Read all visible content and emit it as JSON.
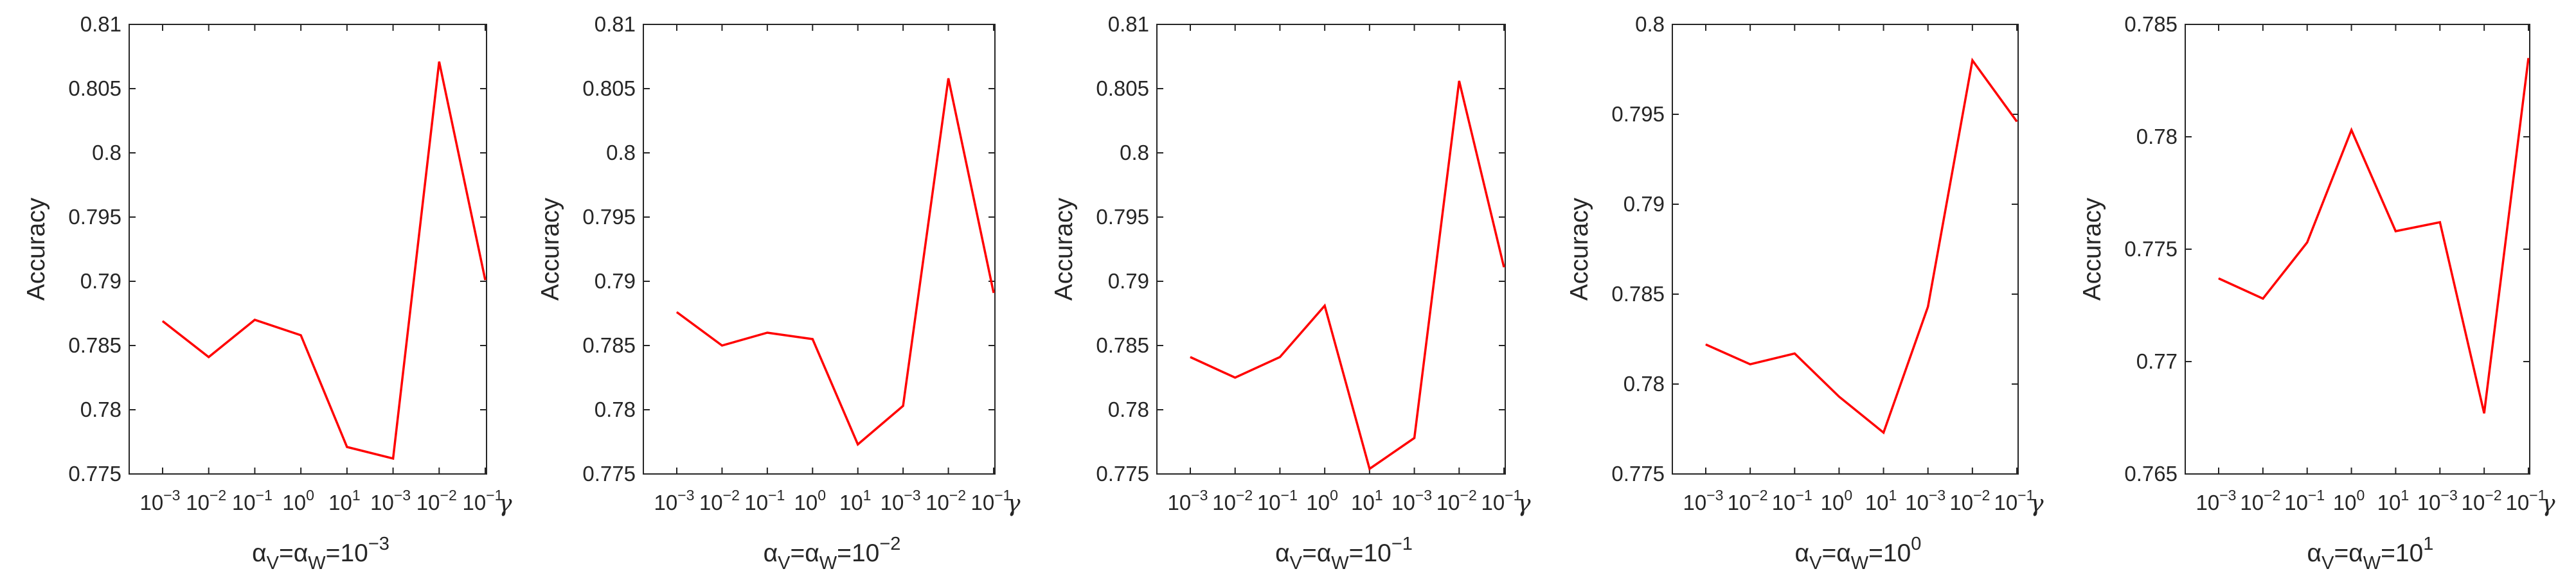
{
  "colors": {
    "series": "#ff0000",
    "axes": "#262626"
  },
  "chart_data": [
    {
      "type": "line",
      "ylabel": "Accuracy",
      "xlabel": {
        "base": "α",
        "sub1": "V",
        "sub2": "W",
        "text": "=",
        "pow_base": "10",
        "exp": "-3"
      },
      "gamma_label": "γ",
      "categories": [
        {
          "base": "10",
          "exp": "-3"
        },
        {
          "base": "10",
          "exp": "-2"
        },
        {
          "base": "10",
          "exp": "-1"
        },
        {
          "base": "10",
          "exp": "0"
        },
        {
          "base": "10",
          "exp": "1"
        },
        {
          "base": "10",
          "exp": "-3"
        },
        {
          "base": "10",
          "exp": "-2"
        },
        {
          "base": "10",
          "exp": "-1"
        }
      ],
      "values": [
        0.7869,
        0.7841,
        0.787,
        0.7858,
        0.7771,
        0.7762,
        0.8071,
        0.7901
      ],
      "ylim": [
        0.775,
        0.81
      ],
      "yticks": [
        "0.775",
        "0.78",
        "0.785",
        "0.79",
        "0.795",
        "0.8",
        "0.805",
        "0.81"
      ],
      "ytick_values": [
        0.775,
        0.78,
        0.785,
        0.79,
        0.795,
        0.8,
        0.805,
        0.81
      ],
      "grid": false
    },
    {
      "type": "line",
      "ylabel": "Accuracy",
      "xlabel": {
        "base": "α",
        "sub1": "V",
        "sub2": "W",
        "text": "=",
        "pow_base": "10",
        "exp": "-2"
      },
      "gamma_label": "γ",
      "categories": [
        {
          "base": "10",
          "exp": "-3"
        },
        {
          "base": "10",
          "exp": "-2"
        },
        {
          "base": "10",
          "exp": "-1"
        },
        {
          "base": "10",
          "exp": "0"
        },
        {
          "base": "10",
          "exp": "1"
        },
        {
          "base": "10",
          "exp": "-3"
        },
        {
          "base": "10",
          "exp": "-2"
        },
        {
          "base": "10",
          "exp": "-1"
        }
      ],
      "values": [
        0.7876,
        0.785,
        0.786,
        0.7855,
        0.7773,
        0.7803,
        0.8058,
        0.7891
      ],
      "ylim": [
        0.775,
        0.81
      ],
      "yticks": [
        "0.775",
        "0.78",
        "0.785",
        "0.79",
        "0.795",
        "0.8",
        "0.805",
        "0.81"
      ],
      "ytick_values": [
        0.775,
        0.78,
        0.785,
        0.79,
        0.795,
        0.8,
        0.805,
        0.81
      ],
      "grid": false
    },
    {
      "type": "line",
      "ylabel": "Accuracy",
      "xlabel": {
        "base": "α",
        "sub1": "V",
        "sub2": "W",
        "text": "=",
        "pow_base": "10",
        "exp": "-1"
      },
      "gamma_label": "γ",
      "categories": [
        {
          "base": "10",
          "exp": "-3"
        },
        {
          "base": "10",
          "exp": "-2"
        },
        {
          "base": "10",
          "exp": "-1"
        },
        {
          "base": "10",
          "exp": "0"
        },
        {
          "base": "10",
          "exp": "1"
        },
        {
          "base": "10",
          "exp": "-3"
        },
        {
          "base": "10",
          "exp": "-2"
        },
        {
          "base": "10",
          "exp": "-1"
        }
      ],
      "values": [
        0.7841,
        0.7825,
        0.7841,
        0.7881,
        0.7754,
        0.7778,
        0.8056,
        0.7911
      ],
      "ylim": [
        0.775,
        0.81
      ],
      "yticks": [
        "0.775",
        "0.78",
        "0.785",
        "0.79",
        "0.795",
        "0.8",
        "0.805",
        "0.81"
      ],
      "ytick_values": [
        0.775,
        0.78,
        0.785,
        0.79,
        0.795,
        0.8,
        0.805,
        0.81
      ],
      "grid": false
    },
    {
      "type": "line",
      "ylabel": "Accuracy",
      "xlabel": {
        "base": "α",
        "sub1": "V",
        "sub2": "W",
        "text": "=",
        "pow_base": "10",
        "exp": "0"
      },
      "gamma_label": "γ",
      "categories": [
        {
          "base": "10",
          "exp": "-3"
        },
        {
          "base": "10",
          "exp": "-2"
        },
        {
          "base": "10",
          "exp": "-1"
        },
        {
          "base": "10",
          "exp": "0"
        },
        {
          "base": "10",
          "exp": "1"
        },
        {
          "base": "10",
          "exp": "-3"
        },
        {
          "base": "10",
          "exp": "-2"
        },
        {
          "base": "10",
          "exp": "-1"
        }
      ],
      "values": [
        0.7822,
        0.7811,
        0.7817,
        0.7793,
        0.7773,
        0.7843,
        0.798,
        0.7946
      ],
      "ylim": [
        0.775,
        0.8
      ],
      "yticks": [
        "0.775",
        "0.78",
        "0.785",
        "0.79",
        "0.795",
        "0.8"
      ],
      "ytick_values": [
        0.775,
        0.78,
        0.785,
        0.79,
        0.795,
        0.8
      ],
      "grid": false
    },
    {
      "type": "line",
      "ylabel": "Accuracy",
      "xlabel": {
        "base": "α",
        "sub1": "V",
        "sub2": "W",
        "text": "=",
        "pow_base": "10",
        "exp": "1"
      },
      "gamma_label": "γ",
      "categories": [
        {
          "base": "10",
          "exp": "-3"
        },
        {
          "base": "10",
          "exp": "-2"
        },
        {
          "base": "10",
          "exp": "-1"
        },
        {
          "base": "10",
          "exp": "0"
        },
        {
          "base": "10",
          "exp": "1"
        },
        {
          "base": "10",
          "exp": "-3"
        },
        {
          "base": "10",
          "exp": "-2"
        },
        {
          "base": "10",
          "exp": "-1"
        }
      ],
      "values": [
        0.7737,
        0.7728,
        0.7753,
        0.7803,
        0.7758,
        0.7762,
        0.7677,
        0.7835
      ],
      "ylim": [
        0.765,
        0.785
      ],
      "yticks": [
        "0.765",
        "0.77",
        "0.775",
        "0.78",
        "0.785"
      ],
      "ytick_values": [
        0.765,
        0.77,
        0.775,
        0.78,
        0.785
      ],
      "grid": false
    }
  ]
}
